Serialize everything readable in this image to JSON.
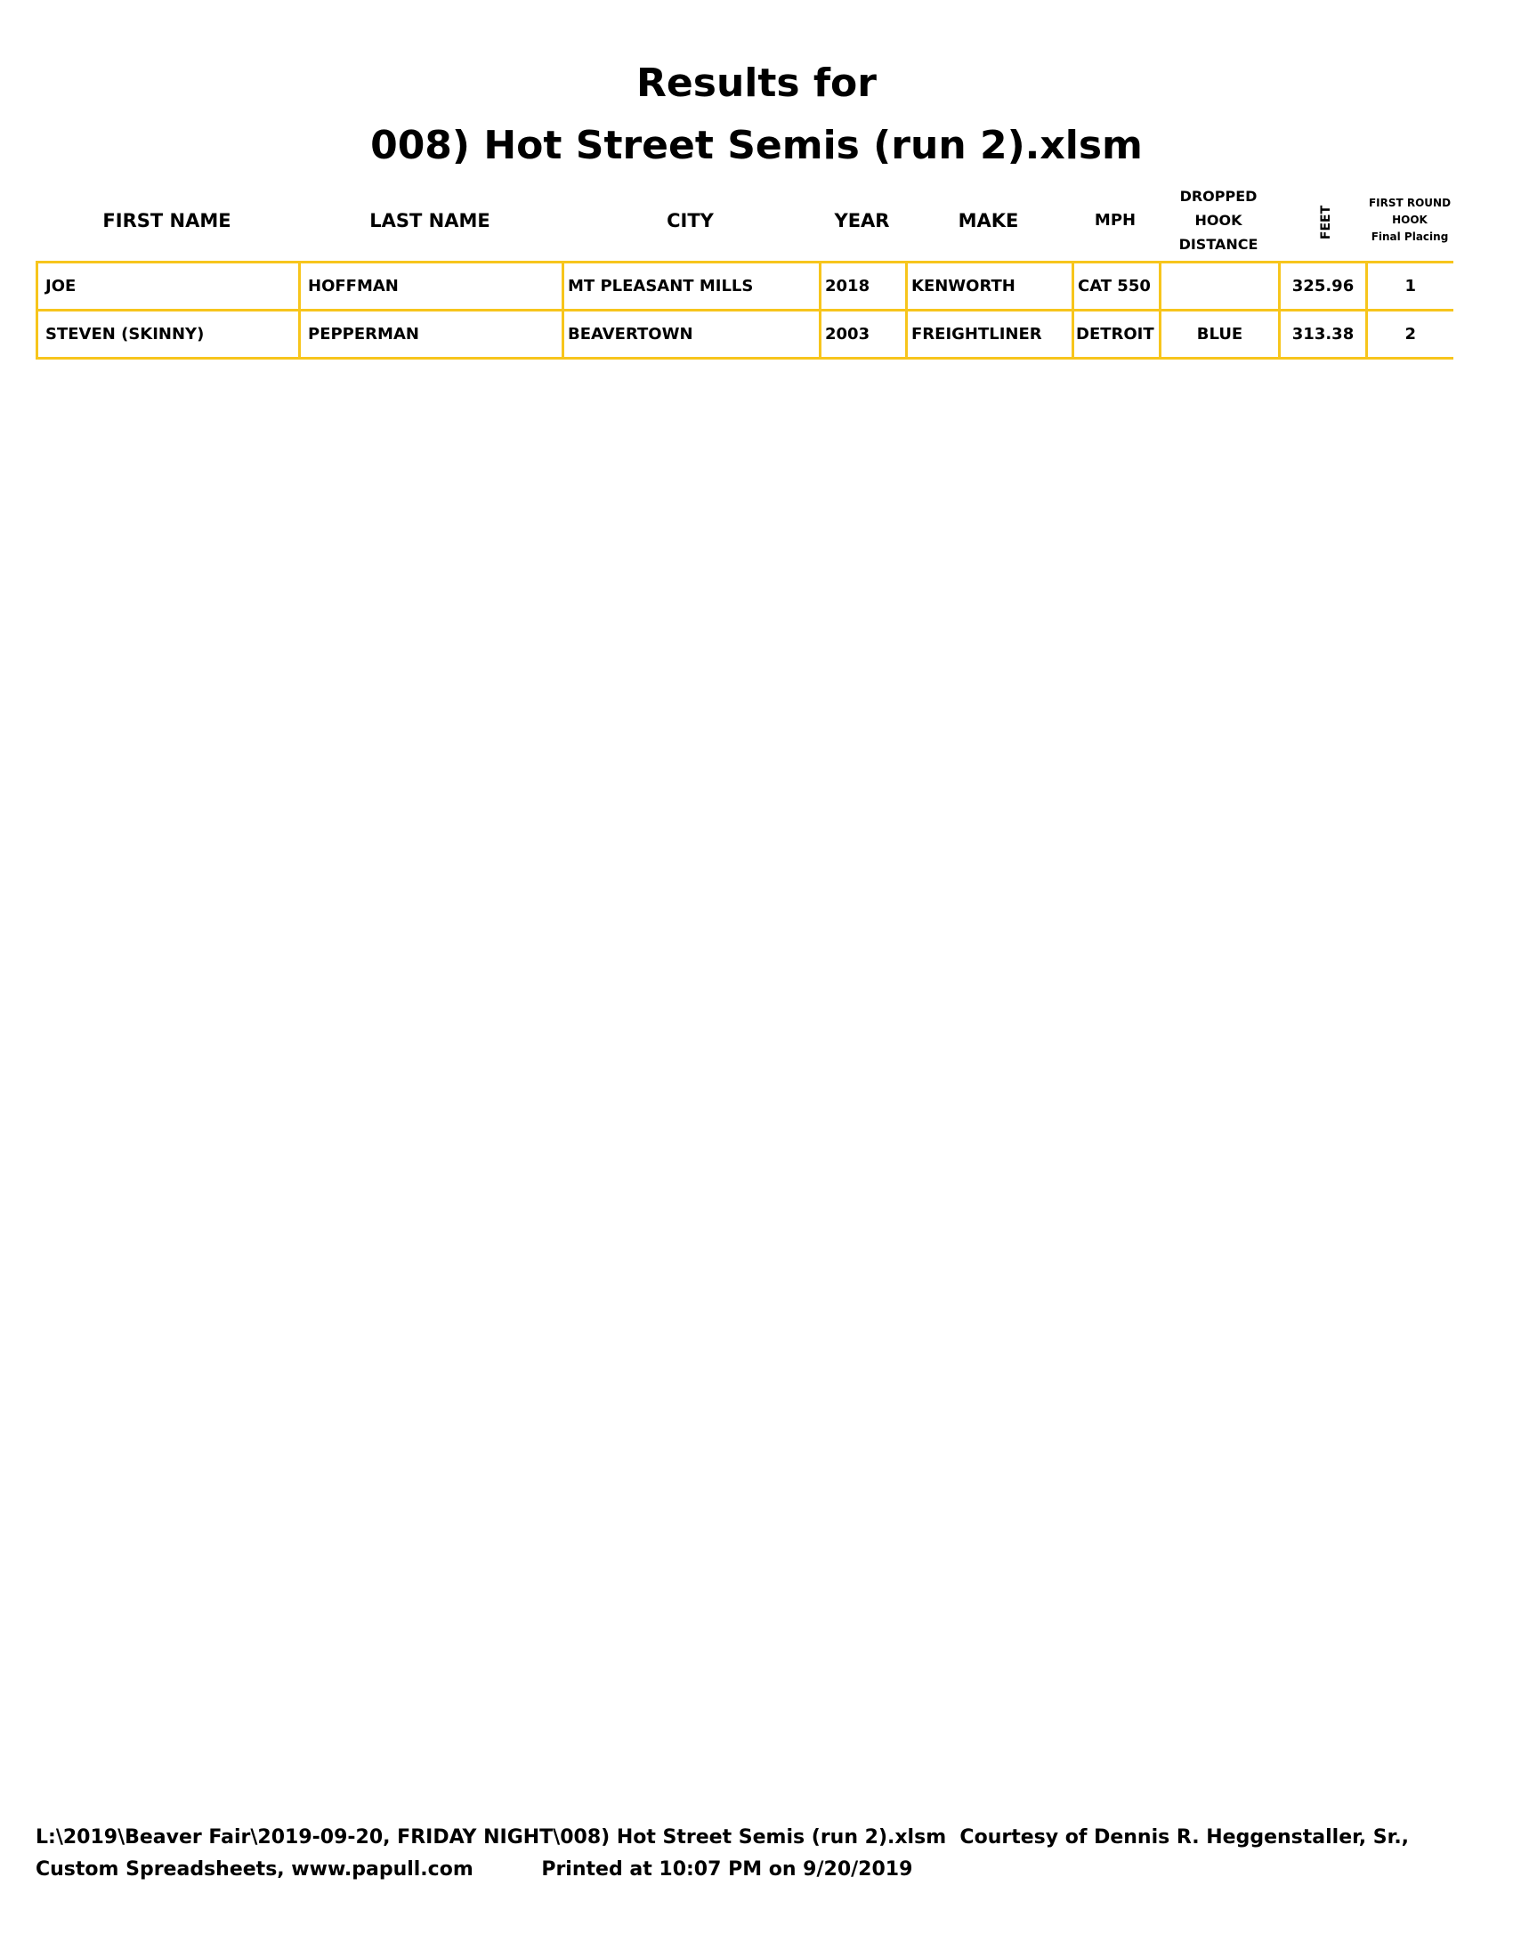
{
  "title_line1": "Results for",
  "title_line2": "008) Hot Street Semis (run 2).xlsm",
  "columns": [
    "FIRST NAME",
    "LAST NAME",
    "CITY",
    "YEAR",
    "MAKE",
    "MPH",
    "DROPPED\nHOOK\nDISTANCE",
    "FEET",
    "FIRST ROUND\nHOOK\nFinal Placing"
  ],
  "rows": [
    [
      "JOE",
      "HOFFMAN",
      "MT PLEASANT MILLS",
      "2018",
      "KENWORTH",
      "CAT 550",
      "",
      "325.96",
      "1"
    ],
    [
      "STEVEN (SKINNY)",
      "PEPPERMAN",
      "BEAVERTOWN",
      "2003",
      "FREIGHTLINER",
      "DETROIT",
      "BLUE",
      "313.38",
      "2"
    ]
  ],
  "footer_line1": "L:\\2019\\Beaver Fair\\2019-09-20, FRIDAY NIGHT\\008) Hot Street Semis (run 2).xlsm  Courtesy of Dennis R. Heggenstaller, Sr.,",
  "footer_line2": "Custom Spreadsheets, www.papull.com          Printed at 10:07 PM on 9/20/2019",
  "colors": {
    "grid_border": "#f7c51c",
    "text": "#000000"
  }
}
